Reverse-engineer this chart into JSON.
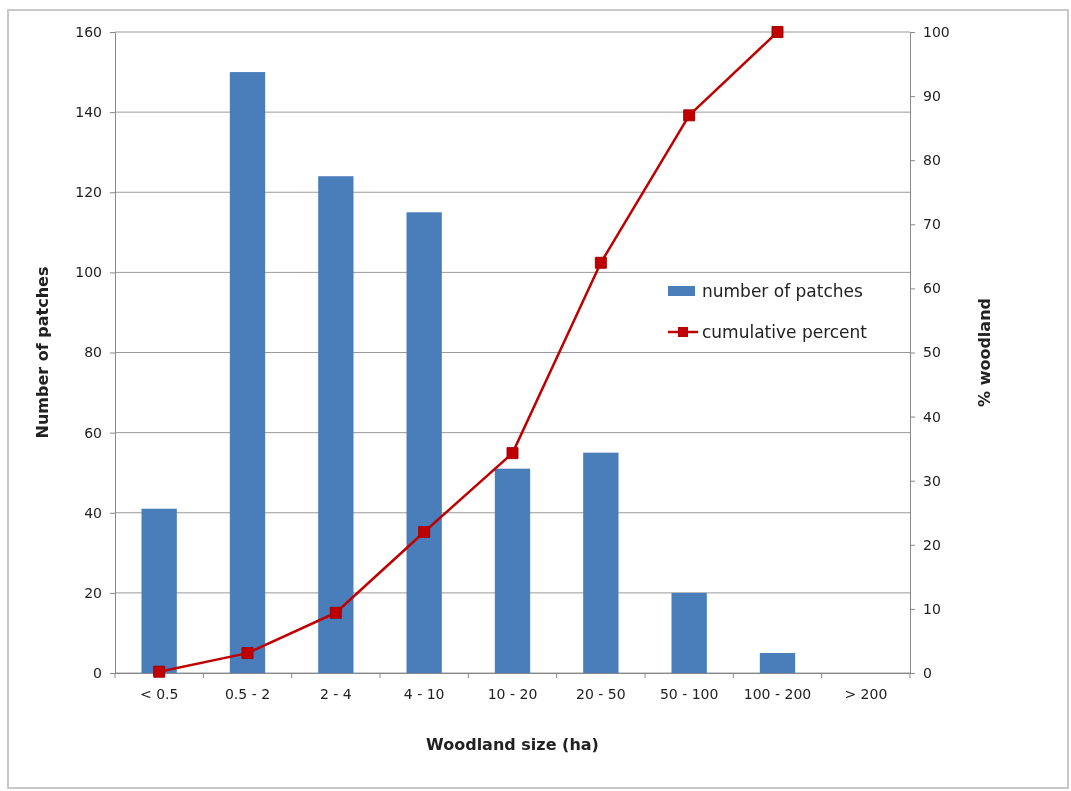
{
  "chart_data": {
    "type": "bar",
    "categories": [
      "< 0.5",
      "0.5 - 2",
      "2 - 4",
      "4 - 10",
      "10 - 20",
      "20 - 50",
      "50 - 100",
      "100 - 200",
      "> 200"
    ],
    "series": [
      {
        "name": "number of patches",
        "color": "#4a7ebb",
        "values": [
          41,
          150,
          124,
          115,
          51,
          55,
          20,
          5,
          null
        ]
      },
      {
        "name": "cumulative percent",
        "type": "line",
        "axis": "y2",
        "color": "#c00000",
        "marker": "square",
        "values": [
          0.2,
          3.1,
          9.4,
          22,
          34.3,
          64,
          87,
          100,
          null
        ]
      }
    ],
    "xlabel": "Woodland size (ha)",
    "ylabel": "Number of patches",
    "y2label": "% woodland",
    "ylim": [
      0,
      160
    ],
    "yticks": [
      0,
      20,
      40,
      60,
      80,
      100,
      120,
      140,
      160
    ],
    "y2lim": [
      0,
      100
    ],
    "y2ticks": [
      0,
      10,
      20,
      30,
      40,
      50,
      60,
      70,
      80,
      90,
      100
    ],
    "grid": "y",
    "legend": "right"
  }
}
